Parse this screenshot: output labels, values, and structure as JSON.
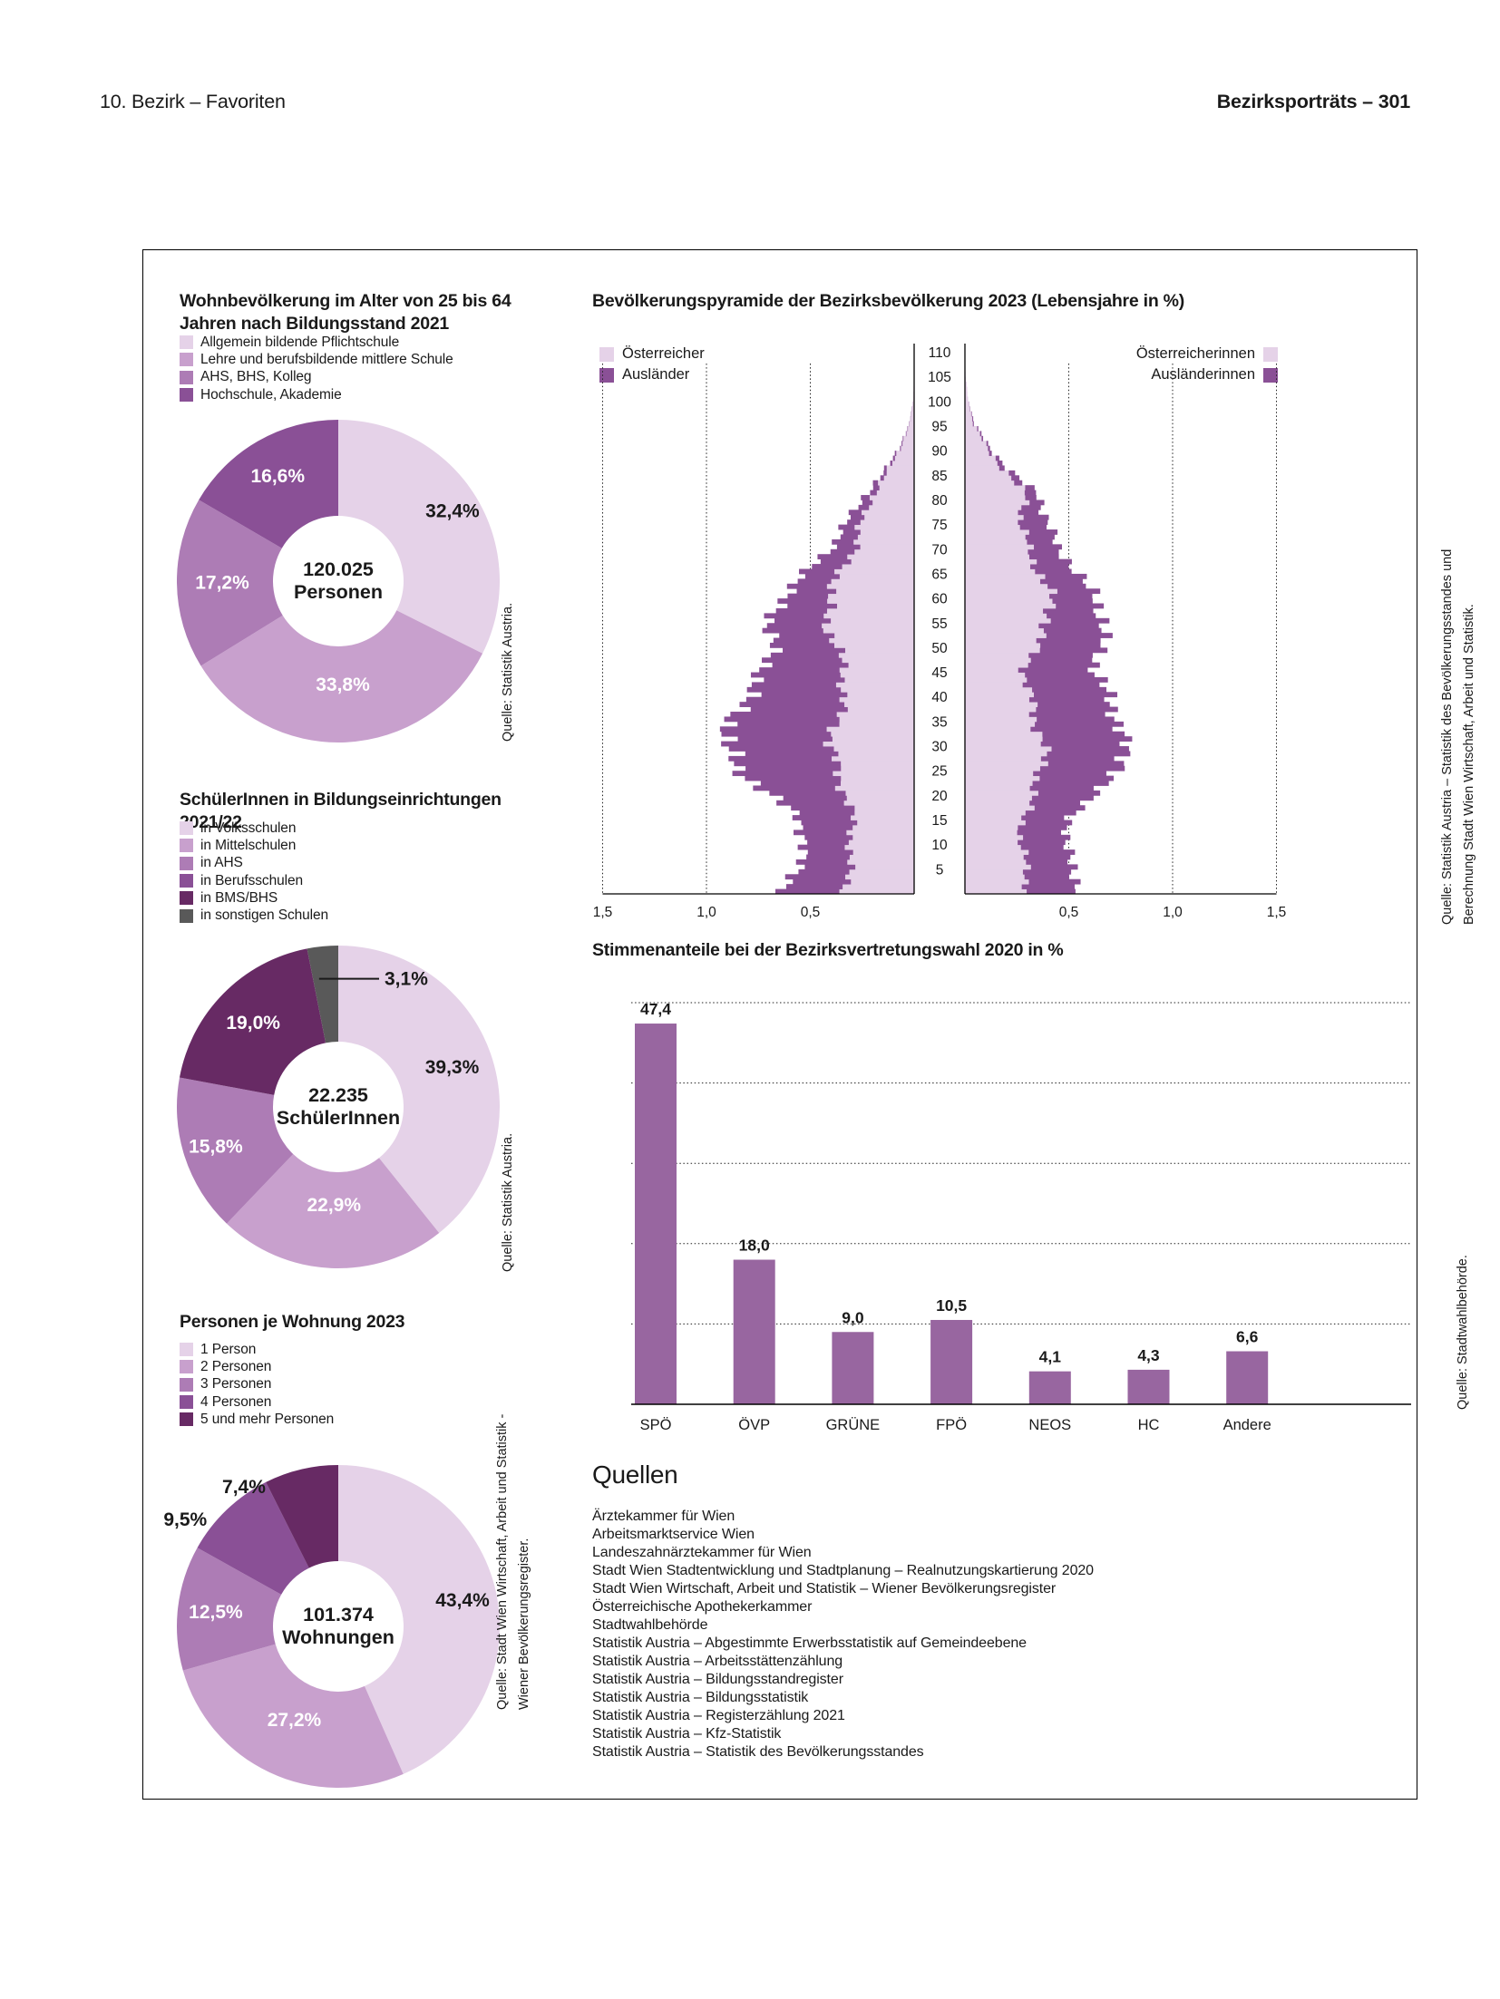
{
  "page": {
    "header_left": "10. Bezirk – Favoriten",
    "header_right": "Bezirksporträts – 301"
  },
  "palette": {
    "c1": "#E5D2E8",
    "c2": "#C8A0CD",
    "c3": "#AD7CB5",
    "c4": "#8A5096",
    "c5": "#672A64",
    "gray": "#595959",
    "bar": "#9866A0",
    "text": "#1A1A1A",
    "white": "#FFFFFF"
  },
  "chart_data": [
    {
      "id": "education",
      "type": "pie",
      "title": "Wohnbevölkerung im Alter von 25 bis 64 Jahren nach Bildungsstand 2021",
      "center_value": "120.025",
      "center_label": "Personen",
      "source": "Quelle: Statistik Austria.",
      "slices": [
        {
          "label": "Allgemein bildende Pflichtschule",
          "value": 32.4,
          "value_label": "32,4%",
          "color": "c1",
          "label_color": "dark",
          "label_radius": 148
        },
        {
          "label": "Lehre und berufsbildende mittlere Schule",
          "value": 33.8,
          "value_label": "33,8%",
          "color": "c2",
          "label_color": "white",
          "label_radius": 114
        },
        {
          "label": "AHS, BHS, Kolleg",
          "value": 17.2,
          "value_label": "17,2%",
          "color": "c3",
          "label_color": "white",
          "label_radius": 128
        },
        {
          "label": "Hochschule, Akademie",
          "value": 16.6,
          "value_label": "16,6%",
          "color": "c4",
          "label_color": "white",
          "label_radius": 134
        }
      ]
    },
    {
      "id": "pyramid",
      "type": "population-pyramid",
      "title": "Bevölkerungspyramide der Bezirksbevölkerung 2023 (Lebensjahre in %)",
      "legend_left": [
        {
          "label": "Österreicher",
          "color": "c1"
        },
        {
          "label": "Ausländer",
          "color": "c4"
        }
      ],
      "legend_right": [
        {
          "label": "Österreicherinnen",
          "color": "c1"
        },
        {
          "label": "Ausländerinnen",
          "color": "c4"
        }
      ],
      "age_axis": {
        "min": 0,
        "max": 110,
        "tick_step": 5
      },
      "x_axis": {
        "ticks": [
          0.5,
          1.0,
          1.5
        ],
        "tick_labels": [
          "0,5",
          "1,0",
          "1,5"
        ],
        "max": 1.5,
        "unit": "%"
      },
      "age_knots": [
        0,
        5,
        10,
        15,
        20,
        25,
        30,
        35,
        40,
        45,
        50,
        55,
        60,
        65,
        70,
        75,
        80,
        85,
        90,
        95,
        100,
        105,
        110
      ],
      "series": {
        "male_austrian": [
          0.33,
          0.32,
          0.3,
          0.3,
          0.33,
          0.38,
          0.4,
          0.37,
          0.34,
          0.34,
          0.38,
          0.42,
          0.42,
          0.35,
          0.29,
          0.25,
          0.21,
          0.13,
          0.07,
          0.02,
          0.005,
          0.001,
          0
        ],
        "male_foreign": [
          0.29,
          0.24,
          0.22,
          0.26,
          0.37,
          0.47,
          0.51,
          0.5,
          0.46,
          0.38,
          0.3,
          0.27,
          0.21,
          0.16,
          0.11,
          0.07,
          0.04,
          0.015,
          0.005,
          0.002,
          0,
          0,
          0
        ],
        "female_austrian": [
          0.31,
          0.29,
          0.27,
          0.28,
          0.33,
          0.37,
          0.38,
          0.34,
          0.31,
          0.29,
          0.34,
          0.41,
          0.41,
          0.36,
          0.3,
          0.27,
          0.3,
          0.2,
          0.11,
          0.04,
          0.015,
          0.003,
          0
        ],
        "female_foreign": [
          0.24,
          0.23,
          0.21,
          0.23,
          0.29,
          0.39,
          0.39,
          0.39,
          0.38,
          0.33,
          0.32,
          0.26,
          0.21,
          0.18,
          0.14,
          0.13,
          0.06,
          0.03,
          0.01,
          0.005,
          0,
          0,
          0
        ]
      }
    },
    {
      "id": "pupils",
      "type": "pie",
      "title": "SchülerInnen in Bildungseinrichtungen 2021/22",
      "center_value": "22.235",
      "center_label": "SchülerInnen",
      "source": "Quelle: Statistik Austria.",
      "slices": [
        {
          "label": "in Volksschulen",
          "value": 39.3,
          "value_label": "39,3%",
          "color": "c1",
          "label_color": "dark",
          "label_radius": 133
        },
        {
          "label": "in Mittelschulen",
          "value": 22.9,
          "value_label": "22,9%",
          "color": "c2",
          "label_color": "white",
          "label_radius": 108
        },
        {
          "label": "in AHS",
          "value": 15.8,
          "value_label": "15,8%",
          "color": "c3",
          "label_color": "white",
          "label_radius": 142
        },
        {
          "label": "in Berufsschulen",
          "value": 0,
          "value_label": "",
          "color": "c4",
          "label_color": "white"
        },
        {
          "label": "in BMS/BHS",
          "value": 19.0,
          "value_label": "19,0%",
          "color": "c5",
          "label_color": "white",
          "label_radius": 132
        },
        {
          "label": "in sonstigen Schulen",
          "value": 3.1,
          "value_label": "3,1%",
          "color": "gray",
          "label_color": "dark",
          "external": true
        }
      ]
    },
    {
      "id": "election",
      "type": "bar",
      "title": "Stimmenanteile bei der Bezirksvertretungswahl 2020 in %",
      "categories": [
        "SPÖ",
        "ÖVP",
        "GRÜNE",
        "FPÖ",
        "NEOS",
        "HC",
        "Andere"
      ],
      "values": [
        47.4,
        18.0,
        9.0,
        10.5,
        4.1,
        4.3,
        6.6
      ],
      "value_labels": [
        "47,4",
        "18,0",
        "9,0",
        "10,5",
        "4,1",
        "4,3",
        "6,6"
      ],
      "ylim": [
        0,
        52
      ],
      "gridlines": [
        10,
        20,
        30,
        40,
        50
      ],
      "source": "Quelle: Stadtwahlbehörde."
    },
    {
      "id": "dwellings",
      "type": "pie",
      "title": "Personen je Wohnung 2023",
      "center_value": "101.374",
      "center_label": "Wohnungen",
      "source": "Quelle: Stadt Wien Wirtschaft, Arbeit und Statistik - Wiener Bevölkerungsregister.",
      "slices": [
        {
          "label": "1 Person",
          "value": 43.4,
          "value_label": "43,4%",
          "color": "c1",
          "label_color": "dark",
          "label_radius": 140
        },
        {
          "label": "2 Personen",
          "value": 27.2,
          "value_label": "27,2%",
          "color": "c2",
          "label_color": "white",
          "label_radius": 114
        },
        {
          "label": "3 Personen",
          "value": 12.5,
          "value_label": "12,5%",
          "color": "c3",
          "label_color": "white",
          "label_radius": 136
        },
        {
          "label": "4 Personen",
          "value": 9.5,
          "value_label": "9,5%",
          "color": "c4",
          "label_color": "dark",
          "label_angle": 305,
          "label_radius": 206
        },
        {
          "label": "5 und mehr Personen",
          "value": 7.4,
          "value_label": "7,4%",
          "color": "c5",
          "label_color": "dark",
          "label_angle": 326,
          "label_radius": 186
        }
      ]
    }
  ],
  "sources": {
    "education": "Quelle: Statistik Austria.",
    "pupils": "Quelle: Statistik Austria.",
    "pyramid_line1": "Quelle: Statistik Austria – Statistik des Bevölkerungsstandes und",
    "pyramid_line2": "Berechnung Stadt Wien Wirtschaft, Arbeit und Statistik.",
    "election": "Quelle: Stadtwahlbehörde.",
    "dwellings_line1": "Quelle: Stadt Wien Wirtschaft, Arbeit und Statistik -",
    "dwellings_line2": "Wiener Bevölkerungsregister."
  },
  "quellen": {
    "title": "Quellen",
    "items": [
      "Ärztekammer für Wien",
      "Arbeitsmarktservice Wien",
      "Landeszahnärztekammer für Wien",
      "Stadt Wien Stadtentwicklung und Stadtplanung – Realnutzungskartierung 2020",
      "Stadt Wien Wirtschaft, Arbeit und Statistik – Wiener Bevölkerungsregister",
      "Österreichische Apothekerkammer",
      "Stadtwahlbehörde",
      "Statistik Austria – Abgestimmte Erwerbsstatistik auf Gemeindeebene",
      "Statistik Austria – Arbeitsstättenzählung",
      "Statistik Austria – Bildungsstandregister",
      "Statistik Austria – Bildungsstatistik",
      "Statistik Austria – Registerzählung 2021",
      "Statistik Austria – Kfz-Statistik",
      "Statistik Austria – Statistik des Bevölkerungsstandes"
    ]
  }
}
